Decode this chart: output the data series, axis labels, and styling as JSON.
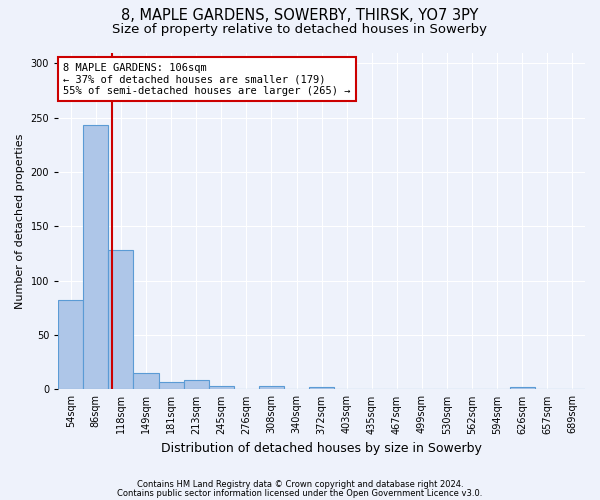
{
  "title1": "8, MAPLE GARDENS, SOWERBY, THIRSK, YO7 3PY",
  "title2": "Size of property relative to detached houses in Sowerby",
  "xlabel": "Distribution of detached houses by size in Sowerby",
  "ylabel": "Number of detached properties",
  "categories": [
    "54sqm",
    "86sqm",
    "118sqm",
    "149sqm",
    "181sqm",
    "213sqm",
    "245sqm",
    "276sqm",
    "308sqm",
    "340sqm",
    "372sqm",
    "403sqm",
    "435sqm",
    "467sqm",
    "499sqm",
    "530sqm",
    "562sqm",
    "594sqm",
    "626sqm",
    "657sqm",
    "689sqm"
  ],
  "values": [
    82,
    243,
    128,
    15,
    7,
    9,
    3,
    0,
    3,
    0,
    2,
    0,
    0,
    0,
    0,
    0,
    0,
    0,
    2,
    0,
    0
  ],
  "bar_color": "#aec6e8",
  "bar_edge_color": "#5b9bd5",
  "annotation_label": "8 MAPLE GARDENS: 106sqm",
  "annotation_line1": "← 37% of detached houses are smaller (179)",
  "annotation_line2": "55% of semi-detached houses are larger (265) →",
  "annotation_box_color": "#ffffff",
  "annotation_box_edge_color": "#cc0000",
  "vline_color": "#cc0000",
  "vline_x": 1.625,
  "ylim": [
    0,
    310
  ],
  "yticks": [
    0,
    50,
    100,
    150,
    200,
    250,
    300
  ],
  "footnote1": "Contains HM Land Registry data © Crown copyright and database right 2024.",
  "footnote2": "Contains public sector information licensed under the Open Government Licence v3.0.",
  "background_color": "#eef2fb",
  "grid_color": "#ffffff",
  "title1_fontsize": 10.5,
  "title2_fontsize": 9.5,
  "ylabel_fontsize": 8,
  "xlabel_fontsize": 9,
  "tick_fontsize": 7,
  "annot_fontsize": 7.5,
  "footnote_fontsize": 6
}
